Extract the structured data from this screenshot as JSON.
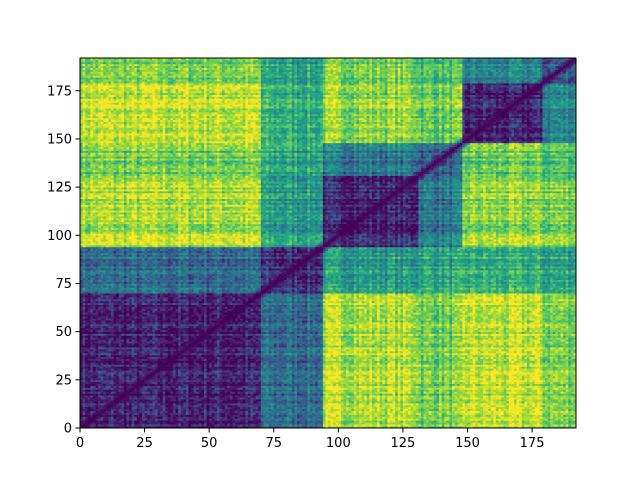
{
  "chart_data": {
    "type": "heatmap",
    "title": "",
    "xlabel": "",
    "ylabel": "",
    "n": 192,
    "xlim": [
      0,
      192
    ],
    "ylim": [
      0,
      192
    ],
    "x_ticks": [
      0,
      25,
      50,
      75,
      100,
      125,
      150,
      175
    ],
    "y_ticks": [
      0,
      25,
      50,
      75,
      100,
      125,
      150,
      175
    ],
    "x_tick_labels": [
      "0",
      "25",
      "50",
      "75",
      "100",
      "125",
      "150",
      "175"
    ],
    "y_tick_labels": [
      "0",
      "25",
      "50",
      "75",
      "100",
      "125",
      "150",
      "175"
    ],
    "colormap": "viridis",
    "value_range": [
      0,
      1
    ],
    "symmetric": true,
    "diagonal_value": 0,
    "clusters": [
      {
        "start": 0,
        "end": 70
      },
      {
        "start": 70,
        "end": 94
      },
      {
        "start": 94,
        "end": 131
      },
      {
        "start": 131,
        "end": 148
      },
      {
        "start": 148,
        "end": 179
      },
      {
        "start": 179,
        "end": 192
      }
    ],
    "cluster_similarity": [
      [
        0.1,
        0.35,
        0.88,
        0.78,
        0.9,
        0.8
      ],
      [
        0.35,
        0.15,
        0.55,
        0.6,
        0.62,
        0.58
      ],
      [
        0.88,
        0.55,
        0.12,
        0.4,
        0.82,
        0.8
      ],
      [
        0.78,
        0.6,
        0.4,
        0.3,
        0.75,
        0.7
      ],
      [
        0.9,
        0.62,
        0.82,
        0.75,
        0.1,
        0.45
      ],
      [
        0.8,
        0.58,
        0.8,
        0.7,
        0.45,
        0.3
      ]
    ],
    "grid": false,
    "colors": {
      "viridis_low": "#440154",
      "viridis_mid": "#21918c",
      "viridis_high": "#fde725"
    }
  }
}
